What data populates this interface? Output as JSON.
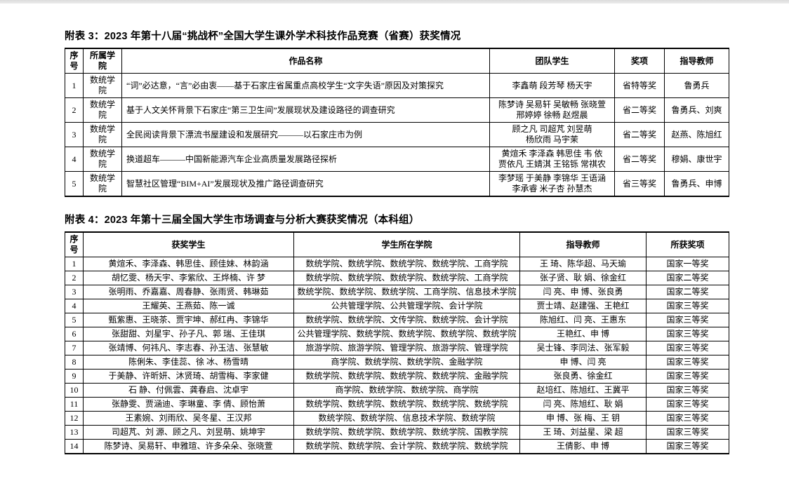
{
  "page": {
    "background": "#ffffff",
    "top_strip_color": "#e0e0e0",
    "text_color": "#000000"
  },
  "table3": {
    "title": "附表 3：2023 年第十八届“挑战杯”全国大学生课外学术科技作品竞赛（省赛）获奖情况",
    "headers": [
      "序号",
      "所属学院",
      "作品名称",
      "团队学生",
      "奖项",
      "指导教师"
    ],
    "rows": [
      [
        "1",
        "数统学院",
        "“词”必达意，“言”必由衷——基于石家庄省属重点高校学生“文字失语”原因及对策探究",
        "李鑫萌 段芳琴 杨天宇",
        "省特等奖",
        "鲁勇兵"
      ],
      [
        "2",
        "数统学院",
        "基于人文关怀背景下石家庄“第三卫生间”发展现状及建设路径的调查研究",
        "陈梦诗 吴易轩 吴敏畅 张晓萱\n邢婷婷 徐畅 赵煜晨",
        "省二等奖",
        "鲁勇兵、刘爽"
      ],
      [
        "3",
        "数统学院",
        "全民阅读背景下漂流书屋建设和发展研究———以石家庄市为例",
        "顾之凡 司超芃 刘昱萌\n杨欣雨 马宇茉",
        "省二等奖",
        "赵燕、陈旭红"
      ],
      [
        "4",
        "数统学院",
        "换道超车———中国新能源汽车企业高质量发展路径探析",
        "黄煊禾 李泽森 韩思佳 韦 依\n贾依凡 王婧淇 王铭铄 常祺农",
        "省二等奖",
        "穆娟、康世宇"
      ],
      [
        "5",
        "数统学院",
        "智慧社区管理“BIM+AI”发展现状及推广路径调查研究",
        "李梦瑶 于美静 李锦华 王语涵\n李承睿 米子杏 孙慧杰",
        "省三等奖",
        "鲁勇兵、申博"
      ]
    ]
  },
  "table4": {
    "title": "附表 4：2023 年第十三届全国大学生市场调查与分析大赛获奖情况（本科组）",
    "headers": [
      "序号",
      "获奖学生",
      "学生所在学院",
      "指导教师",
      "所获奖项"
    ],
    "rows": [
      [
        "1",
        "黄煊禾、李泽森、韩思佳、顾佳妹、林韵涵",
        "数统学院、数统学院、数统学院、数统学院、工商学院",
        "王 琦、陈华超、马天瑜",
        "国家一等奖"
      ],
      [
        "2",
        "胡忆雯、杨天宇、李紫欣、王烨楠、许 梦",
        "数统学院、数统学院、数统学院、数统学院、工商学院",
        "张子贤、耿 娟、徐金红",
        "国家二等奖"
      ],
      [
        "3",
        "张明雨、乔嘉嘉、周春静、张雨贤、韩琳茹",
        "数统学院、数统学院、数统学院、工商学院、信息技术学院",
        "闫 亮、申 博、张良勇",
        "国家二等奖"
      ],
      [
        "4",
        "王耀英、王燕茹、陈一诚",
        "公共管理学院、公共管理学院、会计学院",
        "贾士靖、赵建强、王艳红",
        "国家三等奖"
      ],
      [
        "5",
        "甄紫惠、王晓茶、贾宇坤、郝红冉、李锦华",
        "数统学院、数统学院、文传学院、数统学院、会计学院",
        "陈旭红、闫 亮、王惠东",
        "国家三等奖"
      ],
      [
        "6",
        "张甜甜、刘星宇、孙子凡、郭 瑞、王佳琪",
        "公共管理学院、数统学院、数统学院、数统学院、数统学院",
        "王艳红、申 博",
        "国家三等奖"
      ],
      [
        "7",
        "张靖博、何祎凡、李志春、孙玉洁、张慧敏",
        "旅游学院、旅游学院、管理学院、旅游学院、管理学院",
        "吴士锋、李同法、张军毅",
        "国家三等奖"
      ],
      [
        "8",
        "陈俐朱、李佳蕊、徐 冰、杨雪晴",
        "商学院、数统学院、数统学院、金融学院",
        "申 博、闫 亮",
        "国家三等奖"
      ],
      [
        "9",
        "于美静、许昕妍、沐贤琦、胡雪梅、李家健",
        "数统学院、数统学院、数统学院、数统学院、金融学院",
        "张良勇、徐金红",
        "国家三等奖"
      ],
      [
        "10",
        "石 静、付佩雲、龚春启、沈卓宇",
        "商学院、数统学院、数统学院、商学院",
        "赵培红、陈旭红、王冀平",
        "国家三等奖"
      ],
      [
        "11",
        "张静雯、贾涵迪、李琳童、李 倩、顾怡萧",
        "数统学院、数统学院、数统学院、数统学院、数统学院",
        "闫 亮、陈旭红、耿 娟",
        "国家三等奖"
      ],
      [
        "12",
        "王素婉、刘雨欣、吴冬星、王汉邦",
        "数统学院、数统学院、信息技术学院、数统学院",
        "申 博、张 梅、王 钥",
        "国家三等奖"
      ],
      [
        "13",
        "司超芃、刘 源、顾之凡、刘昱萌、姚坤宇",
        "数统学院、数统学院、数统学院、数统学院、国教学院",
        "王 琦、刘益星、梁 超",
        "国家三等奖"
      ],
      [
        "14",
        "陈梦诗、吴易轩、申雅瑄、许多朵朵、张晓萱",
        "数统学院、数统学院、会计学院、数统学院、数统学院",
        "王倩影、申 博",
        "国家三等奖"
      ]
    ]
  }
}
